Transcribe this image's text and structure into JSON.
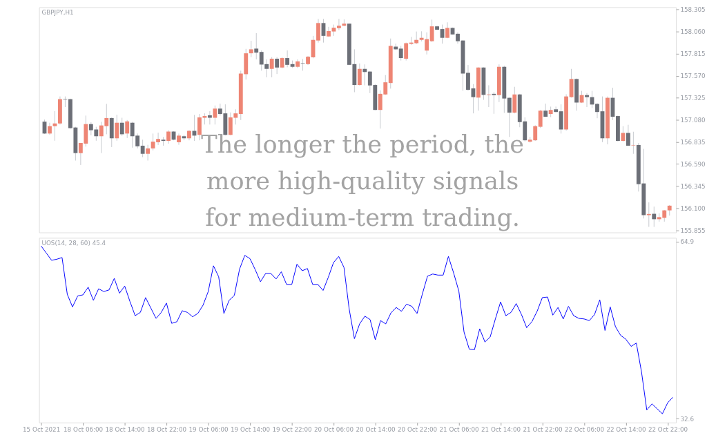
{
  "chart_data": [
    {
      "type": "candlestick",
      "title": "GBPJPY,H1",
      "tick_labels": "y",
      "annotations": [
        "The longer the period, the more high-quality signals for medium-term trading."
      ],
      "categories": [
        null,
        null,
        null,
        null,
        null,
        null,
        null,
        null,
        null,
        null,
        null,
        null,
        null,
        null,
        null,
        null,
        null,
        null,
        null,
        null,
        null,
        null,
        null,
        null,
        null,
        null,
        null,
        null,
        null,
        null,
        null,
        null,
        null,
        null,
        null,
        null,
        null,
        null,
        null,
        null,
        null,
        null,
        null,
        null,
        null,
        null,
        null,
        null,
        null,
        null,
        null,
        null,
        null,
        null,
        null,
        null,
        null,
        null,
        null,
        null,
        null,
        null,
        null,
        null,
        null,
        null,
        null,
        null,
        null,
        null,
        null,
        null,
        null,
        null,
        null,
        null,
        null,
        null,
        null,
        null,
        null,
        null,
        null,
        null,
        null,
        null,
        null,
        null,
        null,
        null,
        null,
        null,
        null,
        null,
        null,
        null,
        null,
        null,
        null,
        null,
        null,
        null,
        null,
        null,
        null,
        null,
        null,
        null,
        null,
        null,
        null,
        null,
        null,
        null,
        null,
        null,
        null,
        null,
        null,
        null,
        null,
        null
      ],
      "ohlc": [
        [
          157.06,
          157.083,
          156.923,
          156.928
        ],
        [
          156.928,
          157.048,
          156.915,
          157.01
        ],
        [
          157.01,
          157.177,
          156.848,
          157.04
        ],
        [
          157.04,
          157.34,
          157.028,
          157.31
        ],
        [
          157.31,
          157.34,
          157.222,
          157.305
        ],
        [
          157.31,
          157.315,
          156.983,
          156.988
        ],
        [
          156.995,
          157.003,
          156.628,
          156.711
        ],
        [
          156.711,
          156.823,
          156.579,
          156.823
        ],
        [
          156.816,
          157.127,
          156.783,
          157.033
        ],
        [
          157.033,
          157.053,
          156.908,
          156.965
        ],
        [
          156.973,
          157.003,
          156.848,
          156.898
        ],
        [
          156.898,
          157.058,
          156.711,
          157.018
        ],
        [
          157.01,
          157.257,
          156.92,
          157.1
        ],
        [
          157.1,
          157.107,
          156.778,
          156.875
        ],
        [
          156.875,
          157.137,
          156.848,
          157.048
        ],
        [
          157.048,
          157.103,
          156.903,
          156.92
        ],
        [
          156.928,
          157.078,
          156.878,
          157.063
        ],
        [
          157.048,
          157.058,
          156.771,
          156.898
        ],
        [
          156.905,
          156.928,
          156.763,
          156.786
        ],
        [
          156.793,
          156.86,
          156.666,
          156.703
        ],
        [
          156.703,
          156.803,
          156.628,
          156.763
        ],
        [
          156.763,
          156.928,
          156.741,
          156.838
        ],
        [
          156.831,
          156.938,
          156.801,
          156.868
        ],
        [
          156.86,
          156.89,
          156.793,
          156.846
        ],
        [
          156.846,
          156.965,
          156.816,
          156.95
        ],
        [
          156.95,
          156.953,
          156.853,
          156.86
        ],
        [
          156.831,
          156.928,
          156.803,
          156.905
        ],
        [
          156.898,
          156.913,
          156.853,
          156.875
        ],
        [
          156.875,
          156.965,
          156.853,
          156.958
        ],
        [
          156.958,
          157.135,
          156.846,
          156.905
        ],
        [
          156.913,
          157.145,
          156.853,
          157.107
        ],
        [
          157.103,
          157.152,
          157.028,
          157.122
        ],
        [
          157.13,
          157.177,
          157.028,
          157.103
        ],
        [
          157.103,
          157.24,
          157.028,
          157.205
        ],
        [
          157.205,
          157.26,
          157.127,
          157.145
        ],
        [
          157.152,
          157.252,
          156.908,
          156.913
        ],
        [
          156.913,
          157.162,
          156.908,
          157.107
        ],
        [
          157.103,
          157.197,
          157.028,
          157.152
        ],
        [
          157.145,
          157.626,
          157.078,
          157.594
        ],
        [
          157.587,
          157.868,
          157.527,
          157.819
        ],
        [
          157.819,
          157.958,
          157.776,
          157.863
        ],
        [
          157.871,
          158.043,
          157.751,
          157.826
        ],
        [
          157.834,
          157.851,
          157.626,
          157.694
        ],
        [
          157.699,
          157.751,
          157.552,
          157.646
        ],
        [
          157.646,
          157.776,
          157.552,
          157.759
        ],
        [
          157.759,
          157.776,
          157.589,
          157.661
        ],
        [
          157.661,
          157.776,
          157.651,
          157.766
        ],
        [
          157.766,
          157.851,
          157.664,
          157.691
        ],
        [
          157.699,
          157.739,
          157.656,
          157.669
        ],
        [
          157.669,
          157.751,
          157.656,
          157.729
        ],
        [
          157.711,
          157.756,
          157.626,
          157.706
        ],
        [
          157.699,
          157.789,
          157.689,
          157.781
        ],
        [
          157.774,
          158.013,
          157.764,
          157.968
        ],
        [
          157.961,
          158.2,
          157.938,
          158.155
        ],
        [
          158.155,
          158.2,
          157.938,
          158.013
        ],
        [
          158.006,
          158.113,
          158.001,
          158.066
        ],
        [
          158.061,
          158.138,
          158.013,
          158.103
        ],
        [
          158.098,
          158.2,
          158.076,
          158.125
        ],
        [
          158.125,
          158.195,
          158.12,
          158.148
        ],
        [
          158.148,
          158.15,
          157.689,
          157.691
        ],
        [
          157.699,
          157.863,
          157.387,
          157.467
        ],
        [
          157.467,
          157.706,
          157.462,
          157.646
        ],
        [
          157.646,
          157.696,
          157.464,
          157.611
        ],
        [
          157.616,
          157.621,
          157.377,
          157.462
        ],
        [
          157.467,
          157.477,
          157.187,
          157.19
        ],
        [
          157.19,
          157.407,
          156.983,
          157.369
        ],
        [
          157.362,
          157.577,
          157.357,
          157.497
        ],
        [
          157.489,
          157.983,
          157.427,
          157.901
        ],
        [
          157.893,
          157.926,
          157.858,
          157.863
        ],
        [
          157.871,
          157.901,
          157.739,
          157.766
        ],
        [
          157.759,
          157.938,
          157.739,
          157.931
        ],
        [
          157.923,
          158.001,
          157.913,
          157.938
        ],
        [
          157.931,
          158.061,
          157.921,
          157.968
        ],
        [
          157.968,
          158.063,
          157.951,
          157.991
        ],
        [
          157.849,
          158.051,
          157.806,
          157.976
        ],
        [
          157.953,
          158.193,
          157.946,
          158.118
        ],
        [
          158.118,
          158.125,
          158.076,
          158.081
        ],
        [
          158.088,
          158.138,
          157.926,
          157.991
        ],
        [
          157.991,
          158.163,
          157.986,
          158.101
        ],
        [
          158.101,
          158.105,
          158.026,
          158.028
        ],
        [
          158.036,
          158.051,
          157.926,
          157.953
        ],
        [
          157.961,
          157.963,
          157.402,
          157.594
        ],
        [
          157.602,
          157.689,
          157.402,
          157.414
        ],
        [
          157.429,
          157.477,
          157.152,
          157.332
        ],
        [
          157.327,
          157.664,
          157.182,
          157.661
        ],
        [
          157.661,
          157.664,
          157.302,
          157.357
        ],
        [
          157.355,
          157.464,
          157.222,
          157.362
        ],
        [
          157.369,
          157.389,
          157.147,
          157.355
        ],
        [
          157.355,
          157.696,
          157.277,
          157.669
        ],
        [
          157.669,
          157.681,
          157.157,
          157.317
        ],
        [
          157.325,
          157.327,
          156.89,
          157.16
        ],
        [
          157.16,
          157.447,
          157.152,
          157.362
        ],
        [
          157.362,
          157.369,
          156.998,
          157.055
        ],
        [
          157.063,
          157.107,
          156.841,
          156.853
        ],
        [
          156.838,
          156.89,
          156.828,
          156.86
        ],
        [
          156.853,
          157.02,
          156.846,
          157.01
        ],
        [
          157.003,
          157.19,
          156.99,
          157.182
        ],
        [
          157.182,
          157.26,
          157.112,
          157.115
        ],
        [
          157.145,
          157.227,
          157.11,
          157.19
        ],
        [
          157.197,
          157.227,
          157.165,
          157.167
        ],
        [
          157.175,
          157.252,
          156.928,
          156.973
        ],
        [
          156.973,
          157.364,
          156.96,
          157.34
        ],
        [
          157.332,
          157.646,
          157.327,
          157.534
        ],
        [
          157.534,
          157.539,
          157.182,
          157.272
        ],
        [
          157.272,
          157.402,
          157.267,
          157.355
        ],
        [
          157.355,
          157.377,
          157.222,
          157.332
        ],
        [
          157.332,
          157.402,
          157.212,
          157.25
        ],
        [
          157.257,
          157.265,
          157.098,
          157.167
        ],
        [
          157.175,
          157.34,
          156.833,
          156.875
        ],
        [
          156.875,
          157.34,
          156.808,
          157.325
        ],
        [
          157.325,
          157.437,
          157.078,
          157.115
        ],
        [
          157.122,
          157.127,
          156.841,
          156.846
        ],
        [
          156.846,
          157.01,
          156.841,
          156.935
        ],
        [
          156.935,
          157.025,
          156.791,
          156.793
        ],
        [
          156.796,
          156.948,
          156.703,
          156.801
        ],
        [
          156.801,
          156.823,
          156.284,
          156.366
        ],
        [
          156.374,
          156.758,
          155.985,
          156.022
        ],
        [
          156.022,
          156.164,
          155.892,
          156.035
        ],
        [
          156.037,
          156.117,
          155.892,
          155.977
        ],
        [
          155.977,
          156.042,
          155.95,
          156.0
        ],
        [
          155.992,
          156.08,
          155.95,
          156.075
        ],
        [
          156.075,
          156.134,
          156.017,
          156.127
        ]
      ],
      "colors": [
        "#6c6f77",
        "#ee8574",
        "#ee8574",
        "#ee8574",
        "#6c6f77",
        "#6c6f77",
        "#6c6f77",
        "#ee8574",
        "#ee8574",
        "#6c6f77",
        "#6c6f77",
        "#ee8574",
        "#ee8574",
        "#6c6f77",
        "#ee8574",
        "#6c6f77",
        "#ee8574",
        "#6c6f77",
        "#6c6f77",
        "#6c6f77",
        "#ee8574",
        "#ee8574",
        "#ee8574",
        "#6c6f77",
        "#ee8574",
        "#6c6f77",
        "#ee8574",
        "#6c6f77",
        "#ee8574",
        "#6c6f77",
        "#ee8574",
        "#ee8574",
        "#6c6f77",
        "#ee8574",
        "#6c6f77",
        "#6c6f77",
        "#ee8574",
        "#ee8574",
        "#ee8574",
        "#ee8574",
        "#ee8574",
        "#6c6f77",
        "#6c6f77",
        "#6c6f77",
        "#ee8574",
        "#6c6f77",
        "#ee8574",
        "#6c6f77",
        "#6c6f77",
        "#ee8574",
        "#6c6f77",
        "#ee8574",
        "#ee8574",
        "#ee8574",
        "#6c6f77",
        "#ee8574",
        "#ee8574",
        "#ee8574",
        "#ee8574",
        "#6c6f77",
        "#6c6f77",
        "#ee8574",
        "#6c6f77",
        "#6c6f77",
        "#6c6f77",
        "#ee8574",
        "#ee8574",
        "#ee8574",
        "#6c6f77",
        "#6c6f77",
        "#ee8574",
        "#ee8574",
        "#ee8574",
        "#ee8574",
        "#ee8574",
        "#ee8574",
        "#6c6f77",
        "#6c6f77",
        "#ee8574",
        "#6c6f77",
        "#6c6f77",
        "#6c6f77",
        "#6c6f77",
        "#6c6f77",
        "#ee8574",
        "#6c6f77",
        "#ee8574",
        "#6c6f77",
        "#ee8574",
        "#6c6f77",
        "#6c6f77",
        "#ee8574",
        "#6c6f77",
        "#6c6f77",
        "#ee8574",
        "#ee8574",
        "#ee8574",
        "#6c6f77",
        "#ee8574",
        "#6c6f77",
        "#6c6f77",
        "#ee8574",
        "#ee8574",
        "#6c6f77",
        "#ee8574",
        "#6c6f77",
        "#6c6f77",
        "#6c6f77",
        "#6c6f77",
        "#ee8574",
        "#6c6f77",
        "#6c6f77",
        "#ee8574",
        "#6c6f77",
        "#ee8574",
        "#6c6f77",
        "#6c6f77",
        "#ee8574",
        "#6c6f77",
        "#ee8574",
        "#ee8574",
        "#ee8574"
      ],
      "ylim": [
        155.83,
        158.33
      ],
      "yticks": [
        158.305,
        {
          "value": 158.06,
          "label": "158.060"
        },
        157.815,
        {
          "value": 157.57,
          "label": "157.570"
        },
        157.325,
        {
          "value": 157.08,
          "label": "157.080"
        },
        156.835,
        {
          "value": 156.59,
          "label": "156.590"
        },
        156.345,
        {
          "value": 156.1,
          "label": "156.100"
        },
        155.855
      ]
    },
    {
      "type": "line",
      "title": "UOS(14, 28, 60) 45.4",
      "categories": [
        "15 Oct 2021",
        null,
        null,
        null,
        null,
        null,
        null,
        null,
        "18 Oct 06:00",
        null,
        null,
        null,
        null,
        null,
        null,
        null,
        "18 Oct 14:00",
        null,
        null,
        null,
        null,
        null,
        null,
        null,
        "18 Oct 22:00",
        null,
        null,
        null,
        null,
        null,
        null,
        null,
        "19 Oct 06:00",
        null,
        null,
        null,
        null,
        null,
        null,
        null,
        "19 Oct 14:00",
        null,
        null,
        null,
        null,
        null,
        null,
        null,
        "19 Oct 22:00",
        null,
        null,
        null,
        null,
        null,
        null,
        null,
        "20 Oct 06:00",
        null,
        null,
        null,
        null,
        null,
        null,
        null,
        "20 Oct 14:00",
        null,
        null,
        null,
        null,
        null,
        null,
        null,
        "20 Oct 22:00",
        null,
        null,
        null,
        null,
        null,
        null,
        null,
        "21 Oct 06:00",
        null,
        null,
        null,
        null,
        null,
        null,
        null,
        "21 Oct 14:00",
        null,
        null,
        null,
        null,
        null,
        null,
        null,
        "21 Oct 22:00",
        null,
        null,
        null,
        null,
        null,
        null,
        null,
        "22 Oct 06:00",
        null,
        null,
        null,
        null,
        null,
        null,
        null,
        "22 Oct 14:00",
        null,
        null,
        null,
        null,
        null,
        null,
        null,
        "22 Oct 22:00",
        null
      ],
      "series": [
        {
          "color": "#0000ff",
          "values": [
            64.1,
            62.8,
            61.5,
            61.7,
            62.0,
            55.3,
            53.0,
            55.0,
            55.2,
            56.6,
            54.2,
            56.3,
            55.8,
            56.1,
            58.2,
            55.5,
            56.8,
            54.0,
            51.4,
            52.0,
            54.7,
            52.8,
            50.9,
            52.0,
            53.7,
            50.0,
            50.3,
            52.3,
            52.0,
            51.2,
            51.8,
            53.3,
            55.8,
            60.5,
            58.5,
            51.8,
            54.2,
            55.1,
            59.9,
            62.4,
            61.8,
            59.8,
            57.6,
            59.1,
            59.1,
            58.1,
            59.4,
            57.1,
            57.1,
            60.8,
            59.6,
            60.0,
            57.1,
            57.1,
            56.0,
            58.4,
            61.1,
            62.2,
            60.2,
            52.6,
            47.2,
            49.9,
            51.3,
            50.7,
            47.0,
            50.5,
            49.9,
            51.9,
            52.9,
            52.2,
            53.5,
            53.1,
            51.8,
            55.3,
            58.6,
            59.0,
            58.8,
            58.8,
            62.2,
            59.2,
            55.9,
            48.4,
            45.3,
            45.2,
            49.0,
            46.6,
            47.5,
            50.8,
            53.9,
            51.4,
            52.0,
            53.6,
            51.6,
            49.2,
            50.3,
            52.2,
            54.7,
            54.8,
            51.5,
            52.9,
            50.8,
            53.1,
            51.4,
            50.9,
            50.8,
            50.5,
            51.6,
            54.3,
            48.7,
            53.0,
            49.4,
            47.8,
            47.1,
            45.8,
            46.4,
            41.1,
            34.2,
            35.3,
            34.4,
            33.5,
            35.5,
            36.5
          ]
        }
      ],
      "ylim": [
        31.9,
        65.6
      ],
      "yticks": [
        64.9,
        32.6
      ]
    }
  ]
}
